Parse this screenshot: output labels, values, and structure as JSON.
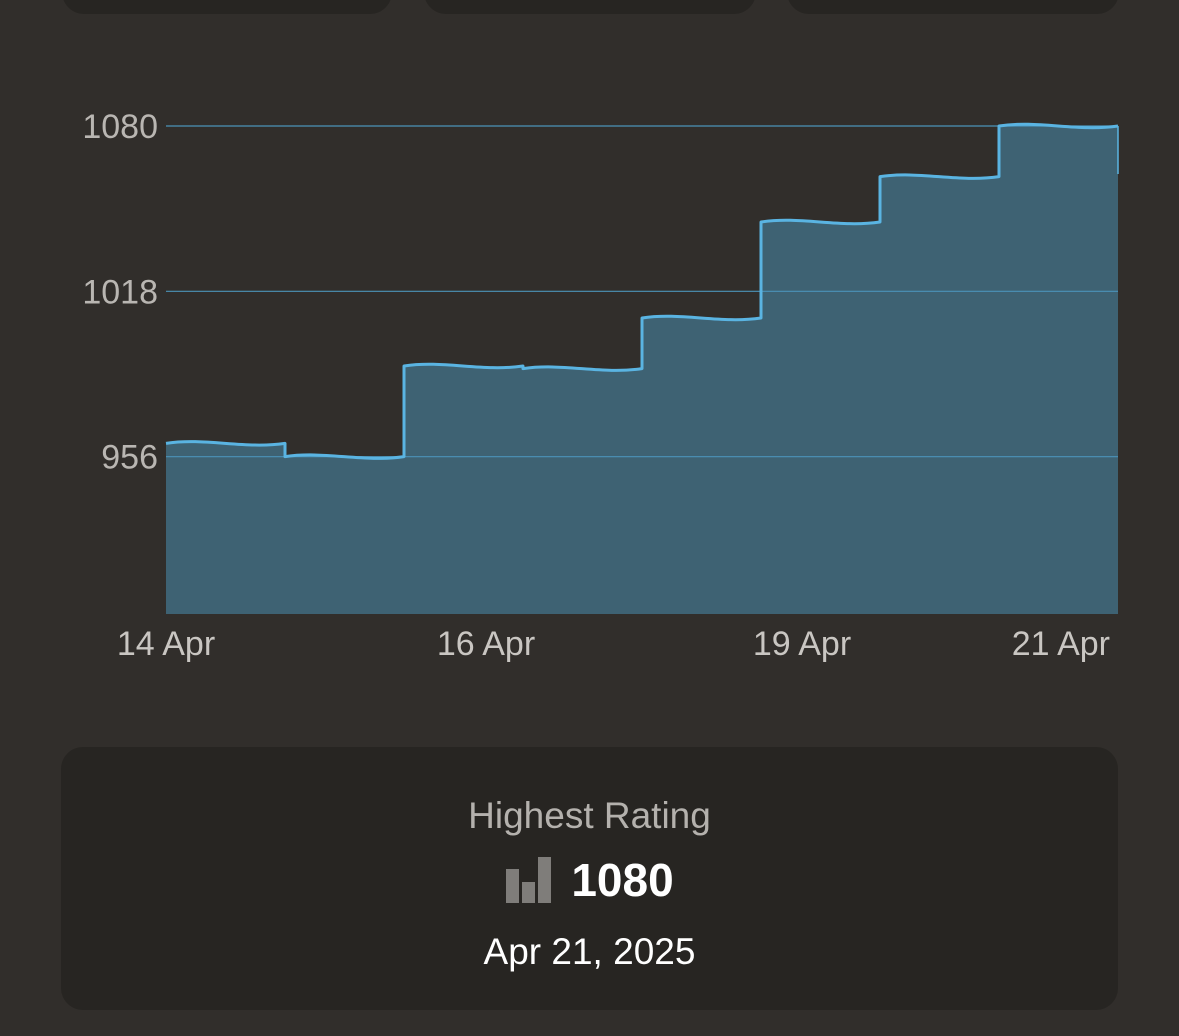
{
  "colors": {
    "background": "#312e2b",
    "card": "#272522",
    "line": "#5ab4e2",
    "area_fill": "#3e6273",
    "gridline": "#4b93b8",
    "icon": "#7f7d7a"
  },
  "chart_data": {
    "type": "area",
    "title": "",
    "xlabel": "",
    "ylabel": "",
    "y_ticks": [
      "1080",
      "1018",
      "956"
    ],
    "x_tick_labels": [
      "14 Apr",
      "16 Apr",
      "19 Apr",
      "21 Apr"
    ],
    "ylim": [
      897,
      1080
    ],
    "grid": true,
    "legend": "none",
    "series": [
      {
        "values": [
          {
            "x": "14 Apr",
            "y": 961
          },
          {
            "x": "15 Apr",
            "y": 956
          },
          {
            "x": "16 Apr",
            "y": 990
          },
          {
            "x": "17 Apr",
            "y": 989
          },
          {
            "x": "18 Apr",
            "y": 1008
          },
          {
            "x": "19 Apr",
            "y": 1044
          },
          {
            "x": "20 Apr",
            "y": 1061
          },
          {
            "x": "21 Apr",
            "y": 1080
          }
        ]
      }
    ]
  },
  "stat": {
    "label": "Highest Rating",
    "icon": "bar-chart-icon",
    "value": "1080",
    "date": "Apr 21, 2025"
  }
}
